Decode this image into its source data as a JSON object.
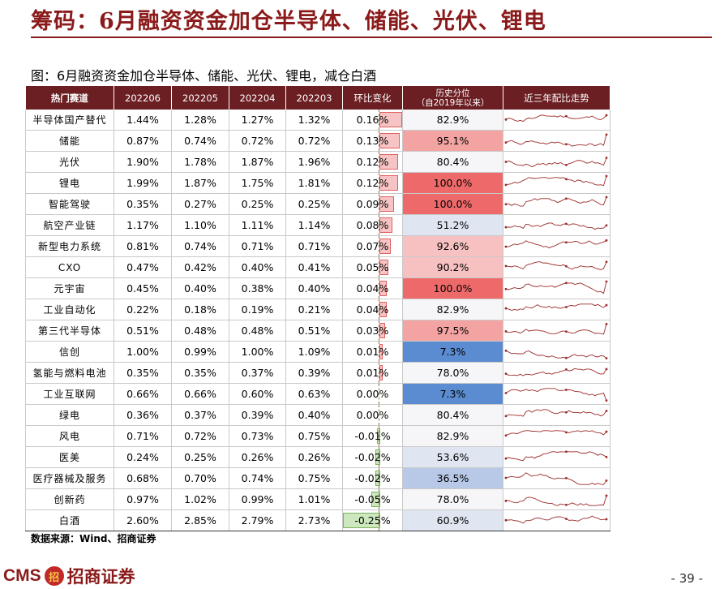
{
  "title": "筹码：6月融资资金加仓半导体、储能、光伏、锂电",
  "caption": "图：6月融资资金加仓半导体、储能、光伏、锂电，减仓白酒",
  "table": {
    "headers": [
      "热门赛道",
      "202206",
      "202205",
      "202204",
      "202203",
      "环比变化",
      "历史分位\n（自2019年以来）",
      "近三年配比走势"
    ],
    "rows": [
      {
        "sector": "半导体国产替代",
        "v1": "1.44%",
        "v2": "1.28%",
        "v3": "1.27%",
        "v4": "1.32%",
        "chg": "0.16%",
        "chg_val": 0.16,
        "pct": "82.9%",
        "pct_val": 82.9
      },
      {
        "sector": "储能",
        "v1": "0.87%",
        "v2": "0.74%",
        "v3": "0.72%",
        "v4": "0.72%",
        "chg": "0.13%",
        "chg_val": 0.13,
        "pct": "95.1%",
        "pct_val": 95.1
      },
      {
        "sector": "光伏",
        "v1": "1.90%",
        "v2": "1.78%",
        "v3": "1.87%",
        "v4": "1.96%",
        "chg": "0.12%",
        "chg_val": 0.12,
        "pct": "80.4%",
        "pct_val": 80.4
      },
      {
        "sector": "锂电",
        "v1": "1.99%",
        "v2": "1.87%",
        "v3": "1.75%",
        "v4": "1.81%",
        "chg": "0.12%",
        "chg_val": 0.12,
        "pct": "100.0%",
        "pct_val": 100.0
      },
      {
        "sector": "智能驾驶",
        "v1": "0.35%",
        "v2": "0.27%",
        "v3": "0.25%",
        "v4": "0.25%",
        "chg": "0.09%",
        "chg_val": 0.09,
        "pct": "100.0%",
        "pct_val": 100.0
      },
      {
        "sector": "航空产业链",
        "v1": "1.17%",
        "v2": "1.10%",
        "v3": "1.11%",
        "v4": "1.14%",
        "chg": "0.08%",
        "chg_val": 0.08,
        "pct": "51.2%",
        "pct_val": 51.2
      },
      {
        "sector": "新型电力系统",
        "v1": "0.81%",
        "v2": "0.74%",
        "v3": "0.71%",
        "v4": "0.71%",
        "chg": "0.07%",
        "chg_val": 0.07,
        "pct": "92.6%",
        "pct_val": 92.6
      },
      {
        "sector": "CXO",
        "v1": "0.47%",
        "v2": "0.42%",
        "v3": "0.40%",
        "v4": "0.41%",
        "chg": "0.05%",
        "chg_val": 0.05,
        "pct": "90.2%",
        "pct_val": 90.2
      },
      {
        "sector": "元宇宙",
        "v1": "0.45%",
        "v2": "0.40%",
        "v3": "0.38%",
        "v4": "0.40%",
        "chg": "0.04%",
        "chg_val": 0.04,
        "pct": "100.0%",
        "pct_val": 100.0
      },
      {
        "sector": "工业自动化",
        "v1": "0.22%",
        "v2": "0.18%",
        "v3": "0.19%",
        "v4": "0.21%",
        "chg": "0.04%",
        "chg_val": 0.04,
        "pct": "82.9%",
        "pct_val": 82.9
      },
      {
        "sector": "第三代半导体",
        "v1": "0.51%",
        "v2": "0.48%",
        "v3": "0.48%",
        "v4": "0.51%",
        "chg": "0.03%",
        "chg_val": 0.03,
        "pct": "97.5%",
        "pct_val": 97.5
      },
      {
        "sector": "信创",
        "v1": "1.00%",
        "v2": "0.99%",
        "v3": "1.00%",
        "v4": "1.09%",
        "chg": "0.01%",
        "chg_val": 0.01,
        "pct": "7.3%",
        "pct_val": 7.3
      },
      {
        "sector": "氢能与燃料电池",
        "v1": "0.35%",
        "v2": "0.35%",
        "v3": "0.37%",
        "v4": "0.39%",
        "chg": "0.01%",
        "chg_val": 0.01,
        "pct": "78.0%",
        "pct_val": 78.0
      },
      {
        "sector": "工业互联网",
        "v1": "0.66%",
        "v2": "0.66%",
        "v3": "0.60%",
        "v4": "0.63%",
        "chg": "0.00%",
        "chg_val": 0.0,
        "pct": "7.3%",
        "pct_val": 7.3
      },
      {
        "sector": "绿电",
        "v1": "0.36%",
        "v2": "0.37%",
        "v3": "0.39%",
        "v4": "0.40%",
        "chg": "0.00%",
        "chg_val": 0.0,
        "pct": "80.4%",
        "pct_val": 80.4
      },
      {
        "sector": "风电",
        "v1": "0.71%",
        "v2": "0.72%",
        "v3": "0.73%",
        "v4": "0.75%",
        "chg": "-0.01%",
        "chg_val": -0.01,
        "pct": "82.9%",
        "pct_val": 82.9
      },
      {
        "sector": "医美",
        "v1": "0.24%",
        "v2": "0.25%",
        "v3": "0.26%",
        "v4": "0.26%",
        "chg": "-0.02%",
        "chg_val": -0.02,
        "pct": "53.6%",
        "pct_val": 53.6
      },
      {
        "sector": "医疗器械及服务",
        "v1": "0.68%",
        "v2": "0.70%",
        "v3": "0.74%",
        "v4": "0.75%",
        "chg": "-0.02%",
        "chg_val": -0.02,
        "pct": "36.5%",
        "pct_val": 36.5
      },
      {
        "sector": "创新药",
        "v1": "0.97%",
        "v2": "1.02%",
        "v3": "0.99%",
        "v4": "1.01%",
        "chg": "-0.05%",
        "chg_val": -0.05,
        "pct": "78.0%",
        "pct_val": 78.0
      },
      {
        "sector": "白酒",
        "v1": "2.60%",
        "v2": "2.85%",
        "v3": "2.79%",
        "v4": "2.73%",
        "chg": "-0.25%",
        "chg_val": -0.25,
        "pct": "60.9%",
        "pct_val": 60.9
      }
    ]
  },
  "colors": {
    "brand": "#8b1a1a",
    "header_bg": "#6b1f23",
    "pct_high": "#ee6a6a",
    "pct_low": "#5b8bd0",
    "spark_line": "#9b2a2a"
  },
  "source": "数据来源：Wind、招商证券",
  "footer": {
    "logo_en": "CMS",
    "logo_mark": "招",
    "logo_cn": "招商证券",
    "page": "- 39 -"
  }
}
